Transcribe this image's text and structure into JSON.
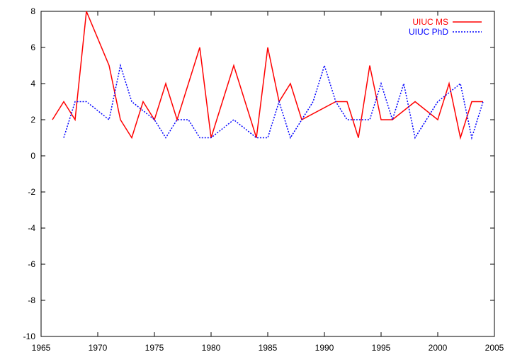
{
  "chart_data": {
    "type": "line",
    "title": "",
    "xlabel": "",
    "ylabel": "",
    "xlim": [
      1965,
      2005
    ],
    "ylim": [
      -10,
      8
    ],
    "grid": false,
    "legend_position": "top-right",
    "x_ticks": [
      1965,
      1970,
      1975,
      1980,
      1985,
      1990,
      1995,
      2000,
      2005
    ],
    "y_ticks": [
      -10,
      -8,
      -6,
      -4,
      -2,
      0,
      2,
      4,
      6,
      8
    ],
    "series": [
      {
        "name": "UIUC MS",
        "color": "#ff0000",
        "style": "solid",
        "x": [
          1966,
          1967,
          1968,
          1969,
          1971,
          1972,
          1973,
          1974,
          1975,
          1976,
          1977,
          1979,
          1980,
          1982,
          1984,
          1985,
          1986,
          1987,
          1988,
          1991,
          1992,
          1993,
          1994,
          1995,
          1996,
          1998,
          2000,
          2001,
          2002,
          2003,
          2004
        ],
        "y": [
          2,
          3,
          2,
          8,
          5,
          2,
          1,
          3,
          2,
          4,
          2,
          6,
          1,
          5,
          1,
          6,
          3,
          4,
          2,
          3,
          3,
          1,
          5,
          2,
          2,
          3,
          2,
          4,
          1,
          3,
          3
        ]
      },
      {
        "name": "UIUC PhD",
        "color": "#0000ff",
        "style": "dotted",
        "x": [
          1967,
          1968,
          1969,
          1971,
          1972,
          1973,
          1975,
          1976,
          1977,
          1978,
          1979,
          1980,
          1982,
          1984,
          1985,
          1986,
          1987,
          1988,
          1989,
          1990,
          1991,
          1992,
          1994,
          1995,
          1996,
          1997,
          1998,
          2000,
          2002,
          2003,
          2004
        ],
        "y": [
          1,
          3,
          3,
          2,
          5,
          3,
          2,
          1,
          2,
          2,
          1,
          1,
          2,
          1,
          1,
          3,
          1,
          2,
          3,
          5,
          3,
          2,
          2,
          4,
          2,
          4,
          1,
          3,
          4,
          1,
          3
        ]
      }
    ]
  }
}
